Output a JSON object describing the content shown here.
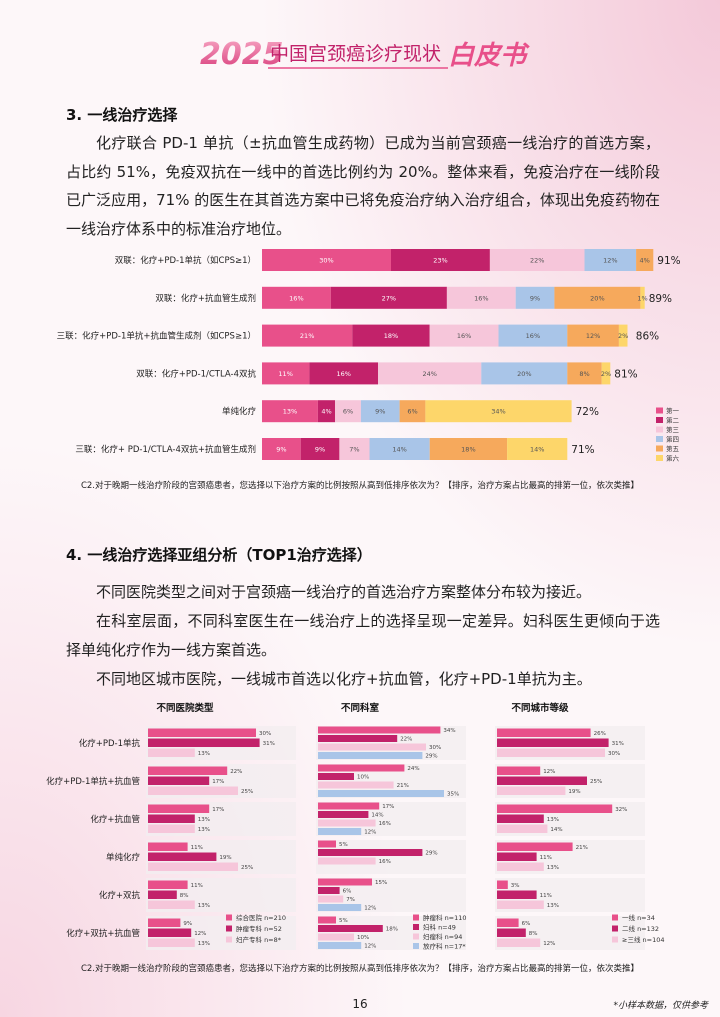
{
  "header": {
    "year": "2025",
    "title": "中国宫颈癌诊疗现状",
    "badge": "白皮书"
  },
  "section3": {
    "title": "3. 一线治疗选择",
    "paragraph": "化疗联合 PD-1 单抗（±抗血管生成药物）已成为当前宫颈癌一线治疗的首选方案，占比约 51%，免疫双抗在一线中的首选比例约为 20%。整体来看，免疫治疗在一线阶段已广泛应用，71% 的医生在其首选方案中已将免疫治疗纳入治疗组合，体现出免疫药物在一线治疗体系中的标准治疗地位。",
    "chart": {
      "type": "bar",
      "stacked": true,
      "categories": [
        "双联：化疗+PD-1单抗（如CPS≥1）",
        "双联：化疗+抗血管生成剂",
        "三联：化疗+PD-1单抗+抗血管生成剂（如CPS≥1）",
        "双联：化疗+PD-1/CTLA-4双抗",
        "单纯化疗",
        "三联：化疗+ PD-1/CTLA-4双抗+抗血管生成剂"
      ],
      "series": [
        {
          "name": "第一",
          "color": "#e8508a",
          "values": [
            30,
            16,
            21,
            11,
            13,
            9
          ],
          "value_labels": [
            "30%",
            "16%",
            "21%",
            "11%",
            "13%",
            "9%"
          ]
        },
        {
          "name": "第二",
          "color": "#c2226a",
          "values": [
            23,
            27,
            18,
            16,
            4,
            9
          ],
          "value_labels": [
            "23%",
            "27%",
            "18%",
            "16%",
            "4%",
            "9%"
          ]
        },
        {
          "name": "第三",
          "color": "#f6c6da",
          "values": [
            22,
            16,
            16,
            24,
            6,
            7
          ],
          "value_labels": [
            "22%",
            "16%",
            "16%",
            "24%",
            "6%",
            "7%"
          ]
        },
        {
          "name": "第四",
          "color": "#a9c5e8",
          "values": [
            12,
            9,
            16,
            20,
            9,
            14
          ],
          "value_labels": [
            "12%",
            "9%",
            "16%",
            "20%",
            "9%",
            "14%"
          ]
        },
        {
          "name": "第五",
          "color": "#f6a95c",
          "values": [
            4,
            20,
            12,
            8,
            6,
            18
          ],
          "value_labels": [
            "4%",
            "20%",
            "12%",
            "8%",
            "6%",
            "18%"
          ]
        },
        {
          "name": "第六",
          "color": "#fdd66a",
          "values": [
            null,
            1,
            2,
            2,
            34,
            14
          ],
          "value_labels": [
            null,
            "1%",
            "2%",
            "2%",
            "34%",
            "14%"
          ]
        }
      ],
      "totals": [
        91,
        89,
        86,
        81,
        72,
        71
      ],
      "total_labels": [
        "91%",
        "89%",
        "86%",
        "81%",
        "72%",
        "71%"
      ]
    },
    "note": "C2.对于晚期一线治疗阶段的宫颈癌患者，您选择以下治疗方案的比例按照从高到低排序依次为？【排序，治疗方案占比最高的排第一位，依次类推】"
  },
  "section4": {
    "title": "4. 一线治疗选择亚组分析（TOP1治疗选择）",
    "paragraphs": [
      "不同医院类型之间对于宫颈癌一线治疗的首选治疗方案整体分布较为接近。",
      "在科室层面，不同科室医生在一线治疗上的选择呈现一定差异。妇科医生更倾向于选择单纯化疗作为一线方案首选。",
      "不同地区城市医院，一线城市首选以化疗+抗血管，化疗+PD-1单抗为主。"
    ],
    "row_labels": [
      "化疗+PD-1单抗",
      "化疗+PD-1单抗+抗血管",
      "化疗+抗血管",
      "单纯化疗",
      "化疗+双抗",
      "化疗+双抗+抗血管"
    ],
    "charts": [
      {
        "type": "bar",
        "title": "不同医院类型",
        "series": [
          {
            "name": "综合医院 n=210",
            "color": "#e8508a",
            "values": [
              30,
              22,
              17,
              11,
              11,
              9
            ],
            "value_labels": [
              "30%",
              "22%",
              "17%",
              "11%",
              "11%",
              "9%"
            ]
          },
          {
            "name": "肿瘤专科 n=52",
            "color": "#c2226a",
            "values": [
              31,
              17,
              13,
              19,
              8,
              12
            ],
            "value_labels": [
              "31%",
              "17%",
              "13%",
              "19%",
              "8%",
              "12%"
            ]
          },
          {
            "name": "妇产专科 n=8*",
            "color": "#f6c6da",
            "values": [
              13,
              25,
              13,
              25,
              13,
              13
            ],
            "value_labels": [
              "13%",
              "25%",
              "13%",
              "25%",
              "13%",
              "13%"
            ]
          }
        ]
      },
      {
        "type": "bar",
        "title": "不同科室",
        "series": [
          {
            "name": "肿瘤科 n=110",
            "color": "#e8508a",
            "values": [
              34,
              24,
              17,
              5,
              15,
              5
            ],
            "value_labels": [
              "34%",
              "24%",
              "17%",
              "5%",
              "15%",
              "5%"
            ]
          },
          {
            "name": "妇科 n=49",
            "color": "#c2226a",
            "values": [
              22,
              10,
              14,
              29,
              6,
              18
            ],
            "value_labels": [
              "22%",
              "10%",
              "14%",
              "29%",
              "6%",
              "18%"
            ]
          },
          {
            "name": "妇瘤科 n=94",
            "color": "#f6c6da",
            "values": [
              30,
              21,
              16,
              16,
              7,
              10
            ],
            "value_labels": [
              "30%",
              "21%",
              "16%",
              "16%",
              "7%",
              "10%"
            ]
          },
          {
            "name": "放疗科 n=17*",
            "color": "#a9c5e8",
            "values": [
              29,
              35,
              12,
              null,
              12,
              12
            ],
            "value_labels": [
              "29%",
              "35%",
              "12%",
              null,
              "12%",
              "12%"
            ]
          }
        ]
      },
      {
        "type": "bar",
        "title": "不同城市等级",
        "series": [
          {
            "name": "一线 n=34",
            "color": "#e8508a",
            "values": [
              26,
              12,
              32,
              21,
              3,
              6
            ],
            "value_labels": [
              "26%",
              "12%",
              "32%",
              "21%",
              "3%",
              "6%"
            ]
          },
          {
            "name": "二线 n=132",
            "color": "#c2226a",
            "values": [
              31,
              25,
              13,
              11,
              11,
              8
            ],
            "value_labels": [
              "31%",
              "25%",
              "13%",
              "11%",
              "11%",
              "8%"
            ]
          },
          {
            "name": "≥三线 n=104",
            "color": "#f6c6da",
            "values": [
              30,
              19,
              14,
              13,
              13,
              12
            ],
            "value_labels": [
              "30%",
              "19%",
              "14%",
              "13%",
              "13%",
              "12%"
            ]
          }
        ]
      }
    ],
    "note": "C2.对于晚期一线治疗阶段的宫颈癌患者，您选择以下治疗方案的比例按照从高到低排序依次为？【排序，治疗方案占比最高的排第一位，依次类推】"
  },
  "footer": {
    "page": "16",
    "footnote": "*小样本数据，仅供参考"
  }
}
